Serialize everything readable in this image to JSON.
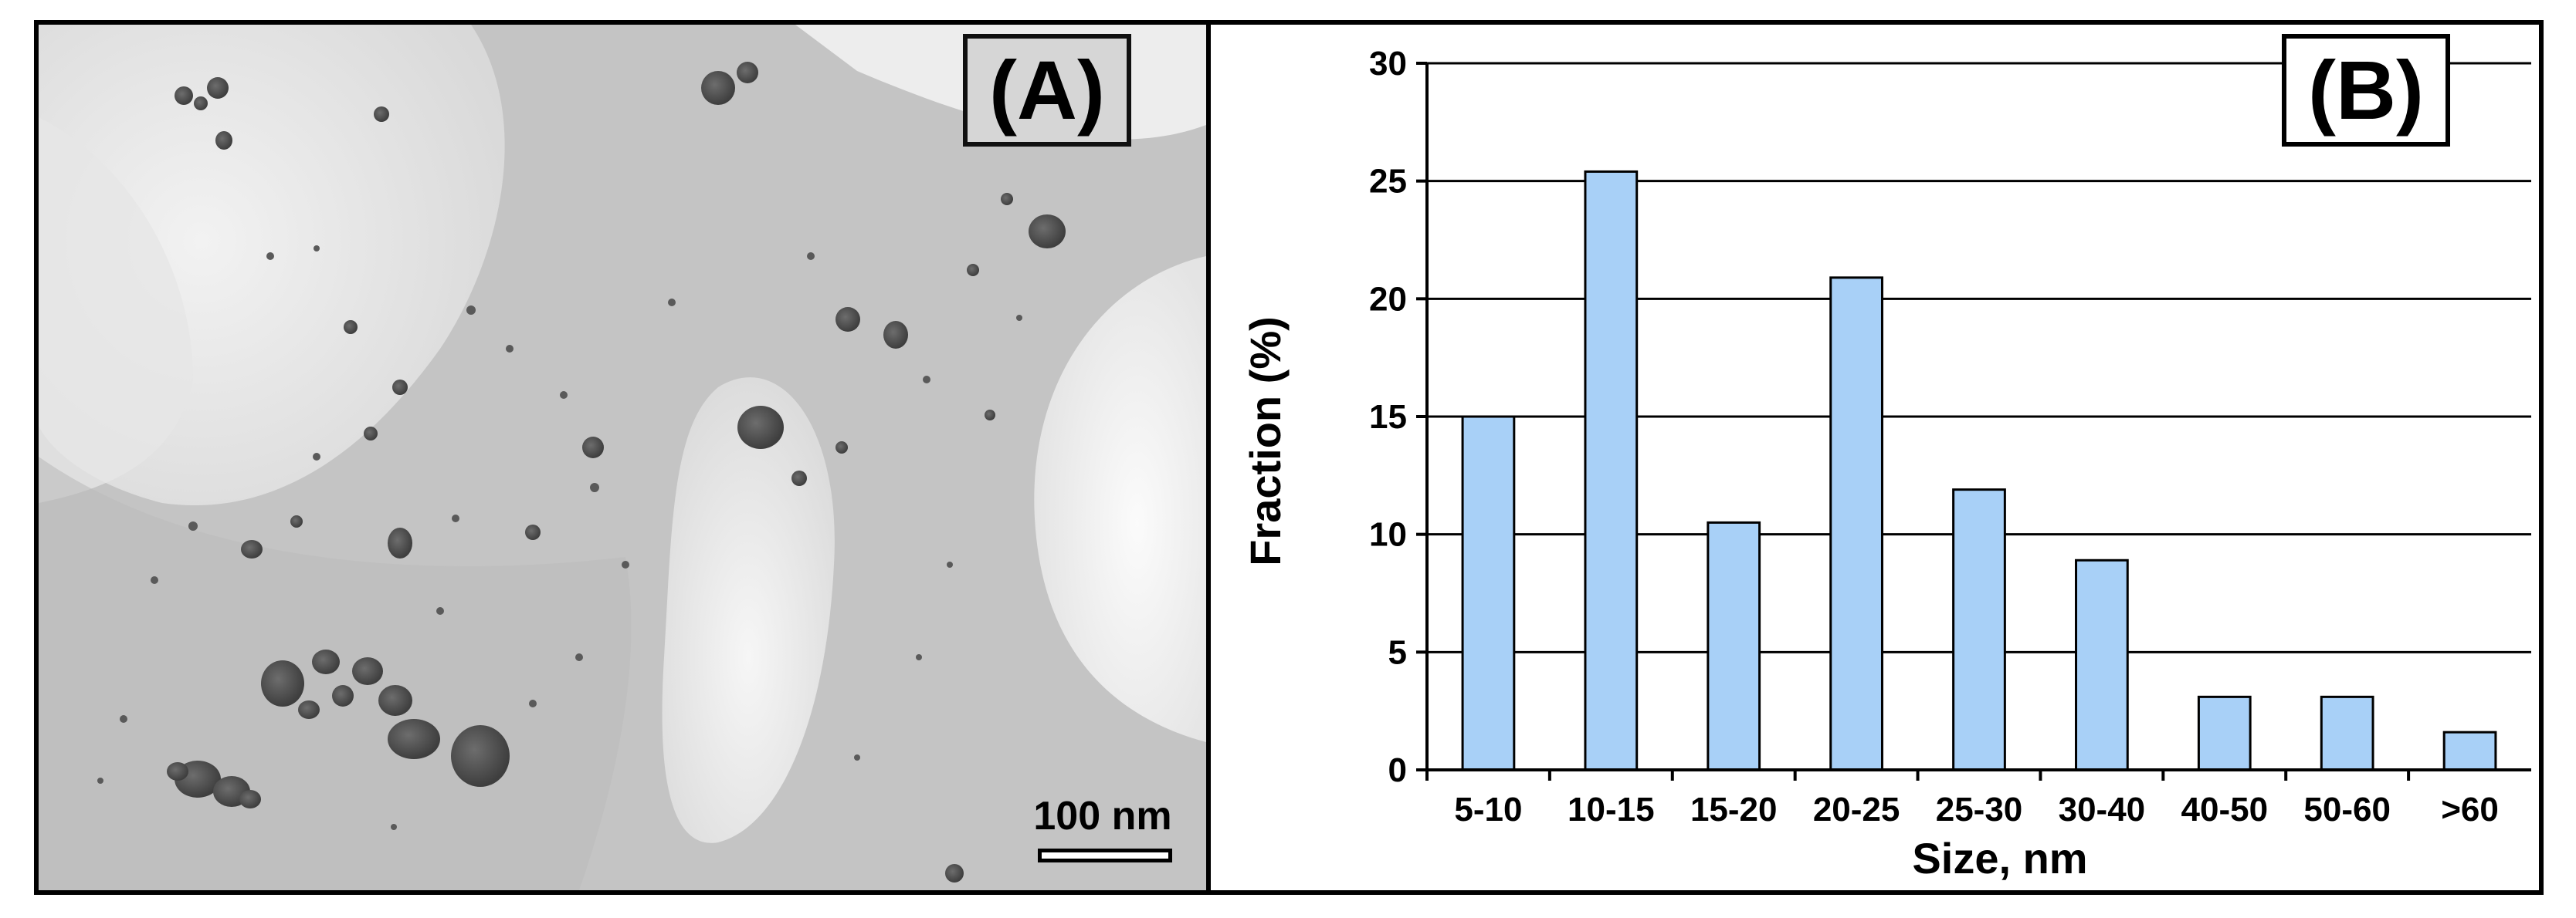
{
  "panel_a": {
    "label": "(A)",
    "scale_bar_text": "100 nm"
  },
  "panel_b": {
    "label": "(B)"
  },
  "colors": {
    "bar_fill": "#a8d0f7",
    "bar_stroke": "#000000",
    "grid": "#000000"
  },
  "chart_data": {
    "type": "bar",
    "title": "",
    "categories": [
      "5-10",
      "10-15",
      "15-20",
      "20-25",
      "25-30",
      "30-40",
      "40-50",
      "50-60",
      ">60"
    ],
    "values": [
      15,
      25.4,
      10.5,
      20.9,
      11.9,
      8.9,
      3.1,
      3.1,
      1.6
    ],
    "xlabel": "Size, nm",
    "ylabel": "Fraction (%)",
    "ylim": [
      0,
      30
    ],
    "yticks": [
      0,
      5,
      10,
      15,
      20,
      25,
      30
    ],
    "grid": true
  }
}
